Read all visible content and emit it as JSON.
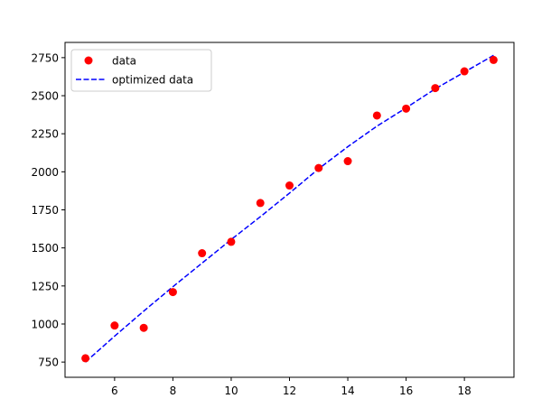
{
  "chart_data": {
    "type": "scatter",
    "title": "",
    "xlabel": "",
    "ylabel": "",
    "xlim": [
      4.3,
      19.7
    ],
    "ylim": [
      650,
      2850
    ],
    "xticks": [
      6,
      8,
      10,
      12,
      14,
      16,
      18
    ],
    "yticks": [
      750,
      1000,
      1250,
      1500,
      1750,
      2000,
      2250,
      2500,
      2750
    ],
    "grid": false,
    "legend_position": "top-left",
    "series": [
      {
        "name": "data",
        "kind": "scatter",
        "color": "#ff0000",
        "x": [
          5,
          6,
          7,
          8,
          9,
          10,
          11,
          12,
          13,
          14,
          15,
          16,
          17,
          18,
          19
        ],
        "y": [
          775,
          990,
          975,
          1210,
          1465,
          1540,
          1795,
          1910,
          2025,
          2070,
          2370,
          2415,
          2550,
          2660,
          2735
        ]
      },
      {
        "name": "optimized data",
        "kind": "line",
        "style": "dashed",
        "color": "#0000ff",
        "x": [
          5,
          6,
          7,
          8,
          9,
          10,
          11,
          12,
          13,
          14,
          15,
          16,
          17,
          18,
          19
        ],
        "y": [
          750,
          920,
          1085,
          1245,
          1400,
          1555,
          1705,
          1860,
          2020,
          2165,
          2300,
          2420,
          2545,
          2655,
          2765
        ]
      }
    ]
  }
}
